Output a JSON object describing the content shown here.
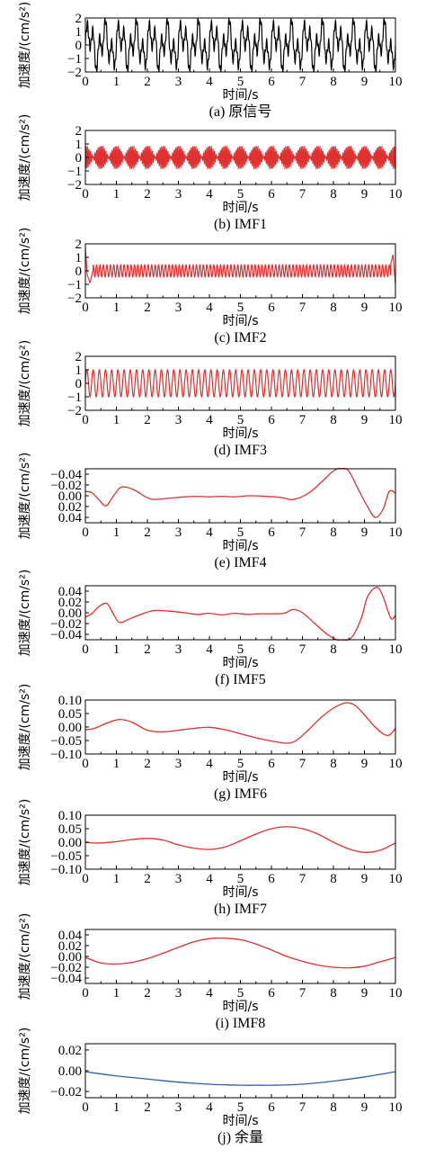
{
  "chart_data": [
    {
      "type": "line",
      "caption": "(a) 原信号",
      "xlabel": "时间/s",
      "ylabel": "加速度/(cm/s²)",
      "xlim": [
        0,
        10
      ],
      "ylim": [
        -2,
        2
      ],
      "xticks": [
        "0",
        "1",
        "2",
        "3",
        "4",
        "5",
        "6",
        "7",
        "8",
        "9",
        "10"
      ],
      "yticks": [
        "2",
        "1",
        "0",
        "−1",
        "−2"
      ],
      "series": [
        {
          "color": "#000000",
          "signal": {
            "kind": "sum",
            "components": [
              {
                "amp": 0.9,
                "freq": 2.0
              },
              {
                "amp": 1.0,
                "freq": 5.0
              },
              {
                "amp": 0.3,
                "freq": 18.0
              }
            ]
          }
        }
      ]
    },
    {
      "type": "line",
      "caption": "(b) IMF1",
      "xlabel": "时间/s",
      "ylabel": "加速度/(cm/s²)",
      "xlim": [
        0,
        10
      ],
      "ylim": [
        -2,
        2
      ],
      "xticks": [
        "0",
        "1",
        "2",
        "3",
        "4",
        "5",
        "6",
        "7",
        "8",
        "9",
        "10"
      ],
      "yticks": [
        "2",
        "1",
        "0",
        "−1",
        "−2"
      ],
      "series": [
        {
          "color": "#e03030",
          "signal": {
            "kind": "beat",
            "amp": 0.85,
            "carrier_freq": 20.0,
            "envelope_freq": 1.0
          }
        }
      ]
    },
    {
      "type": "line",
      "caption": "(c) IMF2",
      "xlabel": "时间/s",
      "ylabel": "加速度/(cm/s²)",
      "xlim": [
        0,
        10
      ],
      "ylim": [
        -2,
        2
      ],
      "xticks": [
        "0",
        "1",
        "2",
        "3",
        "4",
        "5",
        "6",
        "7",
        "8",
        "9",
        "10"
      ],
      "yticks": [
        "2",
        "1",
        "0",
        "−1",
        "−2"
      ],
      "series": [
        {
          "color": "#e03030",
          "signal": {
            "kind": "sine_end_spikes",
            "amp": 0.45,
            "freq": 9.0,
            "start_points": [
              [
                0,
                1.7
              ],
              [
                0.06,
                -0.3
              ],
              [
                0.15,
                -0.9
              ],
              [
                0.25,
                0.1
              ]
            ],
            "end_points": [
              [
                9.85,
                0.5
              ],
              [
                9.92,
                1.2
              ],
              [
                10,
                -1.0
              ]
            ]
          }
        }
      ]
    },
    {
      "type": "line",
      "caption": "(d) IMF3",
      "xlabel": "时间/s",
      "ylabel": "加速度/(cm/s²)",
      "xlim": [
        0,
        10
      ],
      "ylim": [
        -2,
        2
      ],
      "xticks": [
        "0",
        "1",
        "2",
        "3",
        "4",
        "5",
        "6",
        "7",
        "8",
        "9",
        "10"
      ],
      "yticks": [
        "2",
        "1",
        "0",
        "−1",
        "−2"
      ],
      "series": [
        {
          "color": "#e03030",
          "signal": {
            "kind": "sine",
            "amp": 1.0,
            "freq": 5.0
          }
        }
      ]
    },
    {
      "type": "line",
      "caption": "(e) IMF4",
      "xlabel": "时间/s",
      "ylabel": "加速度/(cm/s²)",
      "xlim": [
        0,
        10
      ],
      "ylim": [
        -0.05,
        0.05
      ],
      "y_inverted": true,
      "xticks": [
        "0",
        "1",
        "2",
        "3",
        "4",
        "5",
        "6",
        "7",
        "8",
        "9",
        "10"
      ],
      "yticks": [
        "−0.04",
        "−0.02",
        "0.00",
        "0.02",
        "0.04"
      ],
      "series": [
        {
          "color": "#e03030",
          "x": [
            0,
            0.2,
            0.4,
            0.65,
            0.85,
            1.1,
            1.3,
            1.6,
            2.1,
            2.6,
            3.2,
            3.6,
            4.0,
            4.4,
            4.8,
            5.3,
            5.8,
            6.3,
            6.7,
            7.2,
            7.7,
            8.0,
            8.25,
            8.5,
            8.8,
            9.1,
            9.35,
            9.6,
            9.8,
            10
          ],
          "y": [
            -0.008,
            -0.006,
            0.005,
            0.019,
            0.005,
            -0.014,
            -0.016,
            -0.01,
            0.006,
            0.005,
            0.002,
            0.001,
            0.002,
            0.001,
            0.002,
            0.0,
            0.001,
            0.003,
            0.007,
            -0.005,
            -0.03,
            -0.046,
            -0.052,
            -0.045,
            -0.012,
            0.02,
            0.04,
            0.025,
            -0.008,
            -0.005
          ]
        }
      ]
    },
    {
      "type": "line",
      "caption": "(f) IMF5",
      "xlabel": "时间/s",
      "ylabel": "加速度/(cm/s²)",
      "xlim": [
        0,
        10
      ],
      "ylim": [
        -0.05,
        0.05
      ],
      "xticks": [
        "0",
        "1",
        "2",
        "3",
        "4",
        "5",
        "6",
        "7",
        "8",
        "9",
        "10"
      ],
      "yticks": [
        "0.04",
        "0.02",
        "0.00",
        "−0.02",
        "−0.04"
      ],
      "series": [
        {
          "color": "#e03030",
          "x": [
            0,
            0.2,
            0.45,
            0.7,
            0.9,
            1.1,
            1.4,
            1.8,
            2.2,
            2.7,
            3.2,
            3.6,
            4.0,
            4.4,
            4.8,
            5.2,
            5.6,
            6.0,
            6.4,
            6.7,
            7.0,
            7.4,
            7.8,
            8.1,
            8.3,
            8.6,
            8.9,
            9.1,
            9.4,
            9.6,
            9.85,
            10
          ],
          "y": [
            -0.008,
            -0.002,
            0.012,
            0.017,
            -0.002,
            -0.018,
            -0.012,
            -0.003,
            0.004,
            0.003,
            0.0,
            -0.003,
            -0.001,
            -0.004,
            -0.001,
            -0.003,
            -0.002,
            -0.002,
            -0.001,
            0.006,
            0.0,
            -0.02,
            -0.04,
            -0.05,
            -0.052,
            -0.045,
            -0.01,
            0.03,
            0.047,
            0.03,
            -0.01,
            -0.005
          ]
        }
      ]
    },
    {
      "type": "line",
      "caption": "(g) IMF6",
      "xlabel": "时间/s",
      "ylabel": "加速度/(cm/s²)",
      "xlim": [
        0,
        10
      ],
      "ylim": [
        -0.1,
        0.1
      ],
      "xticks": [
        "0",
        "1",
        "2",
        "3",
        "4",
        "5",
        "6",
        "7",
        "8",
        "9",
        "10"
      ],
      "yticks": [
        "0.10",
        "0.05",
        "0.00",
        "−0.05",
        "−0.10"
      ],
      "series": [
        {
          "color": "#e03030",
          "x": [
            0,
            0.3,
            0.7,
            1.1,
            1.5,
            2.0,
            2.5,
            3.0,
            3.5,
            4.0,
            4.5,
            5.0,
            5.5,
            6.0,
            6.5,
            6.8,
            7.2,
            7.6,
            8.0,
            8.4,
            8.7,
            9.0,
            9.3,
            9.6,
            9.8,
            10
          ],
          "y": [
            -0.01,
            -0.005,
            0.015,
            0.028,
            0.018,
            -0.012,
            -0.018,
            -0.012,
            -0.005,
            -0.001,
            -0.01,
            -0.025,
            -0.04,
            -0.052,
            -0.06,
            -0.05,
            -0.01,
            0.035,
            0.07,
            0.09,
            0.08,
            0.045,
            0.005,
            -0.025,
            -0.03,
            -0.005
          ]
        }
      ]
    },
    {
      "type": "line",
      "caption": "(h) IMF7",
      "xlabel": "时间/s",
      "ylabel": "加速度/(cm/s²)",
      "xlim": [
        0,
        10
      ],
      "ylim": [
        -0.1,
        0.1
      ],
      "xticks": [
        "0",
        "1",
        "2",
        "3",
        "4",
        "5",
        "6",
        "7",
        "8",
        "9",
        "10"
      ],
      "yticks": [
        "0.10",
        "0.05",
        "0.00",
        "−0.05",
        "−0.10"
      ],
      "series": [
        {
          "color": "#e03030",
          "x": [
            0,
            0.5,
            1.0,
            1.5,
            2.0,
            2.5,
            3.0,
            3.5,
            4.0,
            4.5,
            5.0,
            5.5,
            6.0,
            6.5,
            7.0,
            7.5,
            8.0,
            8.5,
            9.0,
            9.5,
            10
          ],
          "y": [
            -0.001,
            -0.003,
            0.002,
            0.01,
            0.014,
            0.008,
            -0.01,
            -0.022,
            -0.027,
            -0.018,
            0.005,
            0.03,
            0.05,
            0.057,
            0.05,
            0.03,
            0.0,
            -0.025,
            -0.038,
            -0.03,
            -0.003
          ]
        }
      ]
    },
    {
      "type": "line",
      "caption": "(i) IMF8",
      "xlabel": "时间/s",
      "ylabel": "加速度/(cm/s²)",
      "xlim": [
        0,
        10
      ],
      "ylim": [
        -0.05,
        0.05
      ],
      "xticks": [
        "0",
        "1",
        "2",
        "3",
        "4",
        "5",
        "6",
        "7",
        "8",
        "9",
        "10"
      ],
      "yticks": [
        "0.04",
        "0.02",
        "0.00",
        "−0.02",
        "−0.04"
      ],
      "series": [
        {
          "color": "#e03030",
          "x": [
            0,
            0.5,
            1.0,
            1.5,
            2.0,
            2.5,
            3.0,
            3.5,
            4.0,
            4.4,
            5.0,
            5.5,
            6.0,
            6.5,
            7.0,
            7.5,
            8.0,
            8.5,
            9.0,
            9.5,
            10
          ],
          "y": [
            -0.002,
            -0.012,
            -0.014,
            -0.011,
            -0.004,
            0.006,
            0.017,
            0.027,
            0.033,
            0.034,
            0.031,
            0.023,
            0.012,
            0.0,
            -0.009,
            -0.016,
            -0.02,
            -0.021,
            -0.018,
            -0.01,
            -0.002
          ]
        }
      ]
    },
    {
      "type": "line",
      "caption": "(j) 余量",
      "xlabel": "时间/s",
      "ylabel": "加速度/(cm/s²)",
      "xlim": [
        0,
        10
      ],
      "ylim": [
        -0.026,
        0.026
      ],
      "xticks": [
        "0",
        "1",
        "2",
        "3",
        "4",
        "5",
        "6",
        "7",
        "8",
        "9",
        "10"
      ],
      "yticks": [
        "0.02",
        "0.00",
        "−0.02"
      ],
      "series": [
        {
          "color": "#2f5fa8",
          "x": [
            0,
            1,
            2,
            3,
            4,
            5,
            5.5,
            6,
            7,
            8,
            9,
            10
          ],
          "y": [
            -0.001,
            -0.005,
            -0.008,
            -0.011,
            -0.013,
            -0.014,
            -0.014,
            -0.014,
            -0.013,
            -0.01,
            -0.006,
            -0.001
          ]
        }
      ]
    }
  ]
}
